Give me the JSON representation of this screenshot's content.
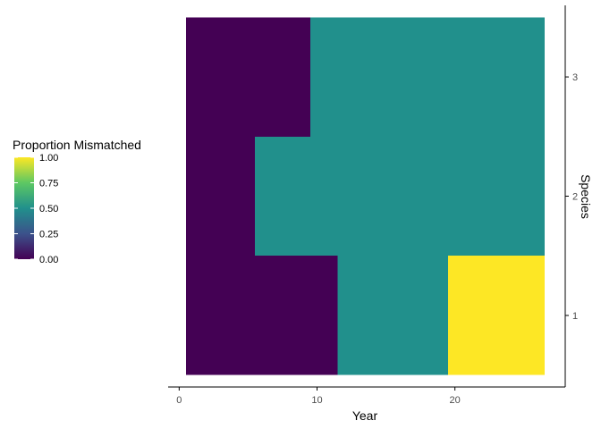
{
  "chart_data": {
    "type": "heatmap",
    "xlabel": "Year",
    "ylabel": "Species",
    "x_ticks": [
      0,
      10,
      20
    ],
    "x_tick_labels": [
      "0",
      "10",
      "20"
    ],
    "xlim": [
      -0.8,
      28.0
    ],
    "y_ticks": [
      1,
      2,
      3
    ],
    "y_tick_labels": [
      "1",
      "2",
      "3"
    ],
    "ylim": [
      0.4,
      3.6
    ],
    "y_axis_position": "right",
    "grid": false,
    "cells": [
      {
        "species": 3,
        "x_start": 0.5,
        "x_end": 9.5,
        "value": 0.0
      },
      {
        "species": 3,
        "x_start": 9.5,
        "x_end": 26.5,
        "value": 0.5
      },
      {
        "species": 2,
        "x_start": 0.5,
        "x_end": 5.5,
        "value": 0.0
      },
      {
        "species": 2,
        "x_start": 5.5,
        "x_end": 26.5,
        "value": 0.5
      },
      {
        "species": 1,
        "x_start": 0.5,
        "x_end": 11.5,
        "value": 0.0
      },
      {
        "species": 1,
        "x_start": 11.5,
        "x_end": 19.5,
        "value": 0.5
      },
      {
        "species": 1,
        "x_start": 19.5,
        "x_end": 26.5,
        "value": 1.0
      }
    ],
    "colorbar": {
      "title": "Proportion Mismatched",
      "range": [
        0,
        1
      ],
      "ticks": [
        0,
        0.25,
        0.5,
        0.75,
        1
      ],
      "tick_labels": [
        "0.00",
        "0.25",
        "0.50",
        "0.75",
        "1.00"
      ],
      "palette": "viridis",
      "placement": "left"
    }
  },
  "colors": {
    "viridis_stops": [
      "#440154",
      "#3B528B",
      "#21908C",
      "#5DC863",
      "#FDE725"
    ],
    "axis_line": "#000000",
    "tick_label": "#4d4d4d"
  }
}
